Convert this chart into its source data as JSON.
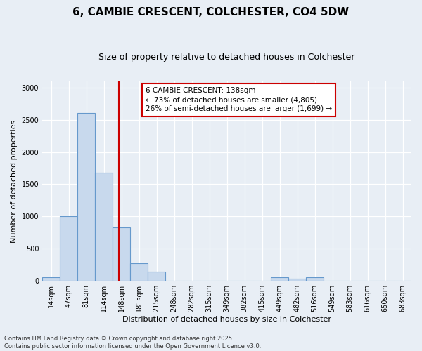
{
  "title": "6, CAMBIE CRESCENT, COLCHESTER, CO4 5DW",
  "subtitle": "Size of property relative to detached houses in Colchester",
  "xlabel": "Distribution of detached houses by size in Colchester",
  "ylabel": "Number of detached properties",
  "categories": [
    "14sqm",
    "47sqm",
    "81sqm",
    "114sqm",
    "148sqm",
    "181sqm",
    "215sqm",
    "248sqm",
    "282sqm",
    "315sqm",
    "349sqm",
    "382sqm",
    "415sqm",
    "449sqm",
    "482sqm",
    "516sqm",
    "549sqm",
    "583sqm",
    "616sqm",
    "650sqm",
    "683sqm"
  ],
  "values": [
    60,
    1000,
    2600,
    1680,
    830,
    270,
    140,
    0,
    0,
    0,
    0,
    0,
    0,
    60,
    40,
    60,
    0,
    0,
    0,
    0,
    0
  ],
  "bar_color": "#c8d9ed",
  "bar_edge_color": "#6699cc",
  "vline_x": 3.85,
  "vline_color": "#cc0000",
  "annotation_text": "6 CAMBIE CRESCENT: 138sqm\n← 73% of detached houses are smaller (4,805)\n26% of semi-detached houses are larger (1,699) →",
  "annotation_box_facecolor": "#ffffff",
  "annotation_box_edge": "#cc0000",
  "ylim": [
    0,
    3100
  ],
  "yticks": [
    0,
    500,
    1000,
    1500,
    2000,
    2500,
    3000
  ],
  "bg_color": "#e8eef5",
  "plot_bg_color": "#e8eef5",
  "footnote": "Contains HM Land Registry data © Crown copyright and database right 2025.\nContains public sector information licensed under the Open Government Licence v3.0.",
  "title_fontsize": 11,
  "subtitle_fontsize": 9,
  "label_fontsize": 8,
  "tick_fontsize": 7,
  "annotation_fontsize": 7.5,
  "footnote_fontsize": 6
}
